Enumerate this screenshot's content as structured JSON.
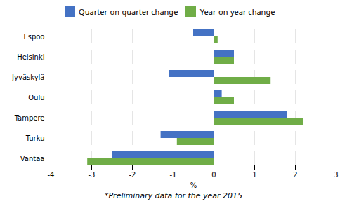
{
  "chart_data": {
    "type": "bar",
    "orientation": "horizontal",
    "categories": [
      "Espoo",
      "Helsinki",
      "Jyväskylä",
      "Oulu",
      "Tampere",
      "Turku",
      "Vantaa"
    ],
    "series": [
      {
        "name": "Quarter-on-quarter change",
        "color": "#4472C4",
        "values": [
          -0.5,
          0.5,
          -1.1,
          0.2,
          1.8,
          -1.3,
          -2.5
        ]
      },
      {
        "name": "Year-on-year change",
        "color": "#70AD47",
        "values": [
          0.1,
          0.5,
          1.4,
          0.5,
          2.2,
          -0.9,
          -3.1
        ]
      }
    ],
    "xlabel": "%",
    "xlim": [
      -4,
      3
    ],
    "xticks": [
      -4,
      -3,
      -2,
      -1,
      0,
      1,
      2,
      3
    ],
    "grid": true,
    "legend": "top",
    "caption": "*Preliminary data for the year 2015"
  }
}
